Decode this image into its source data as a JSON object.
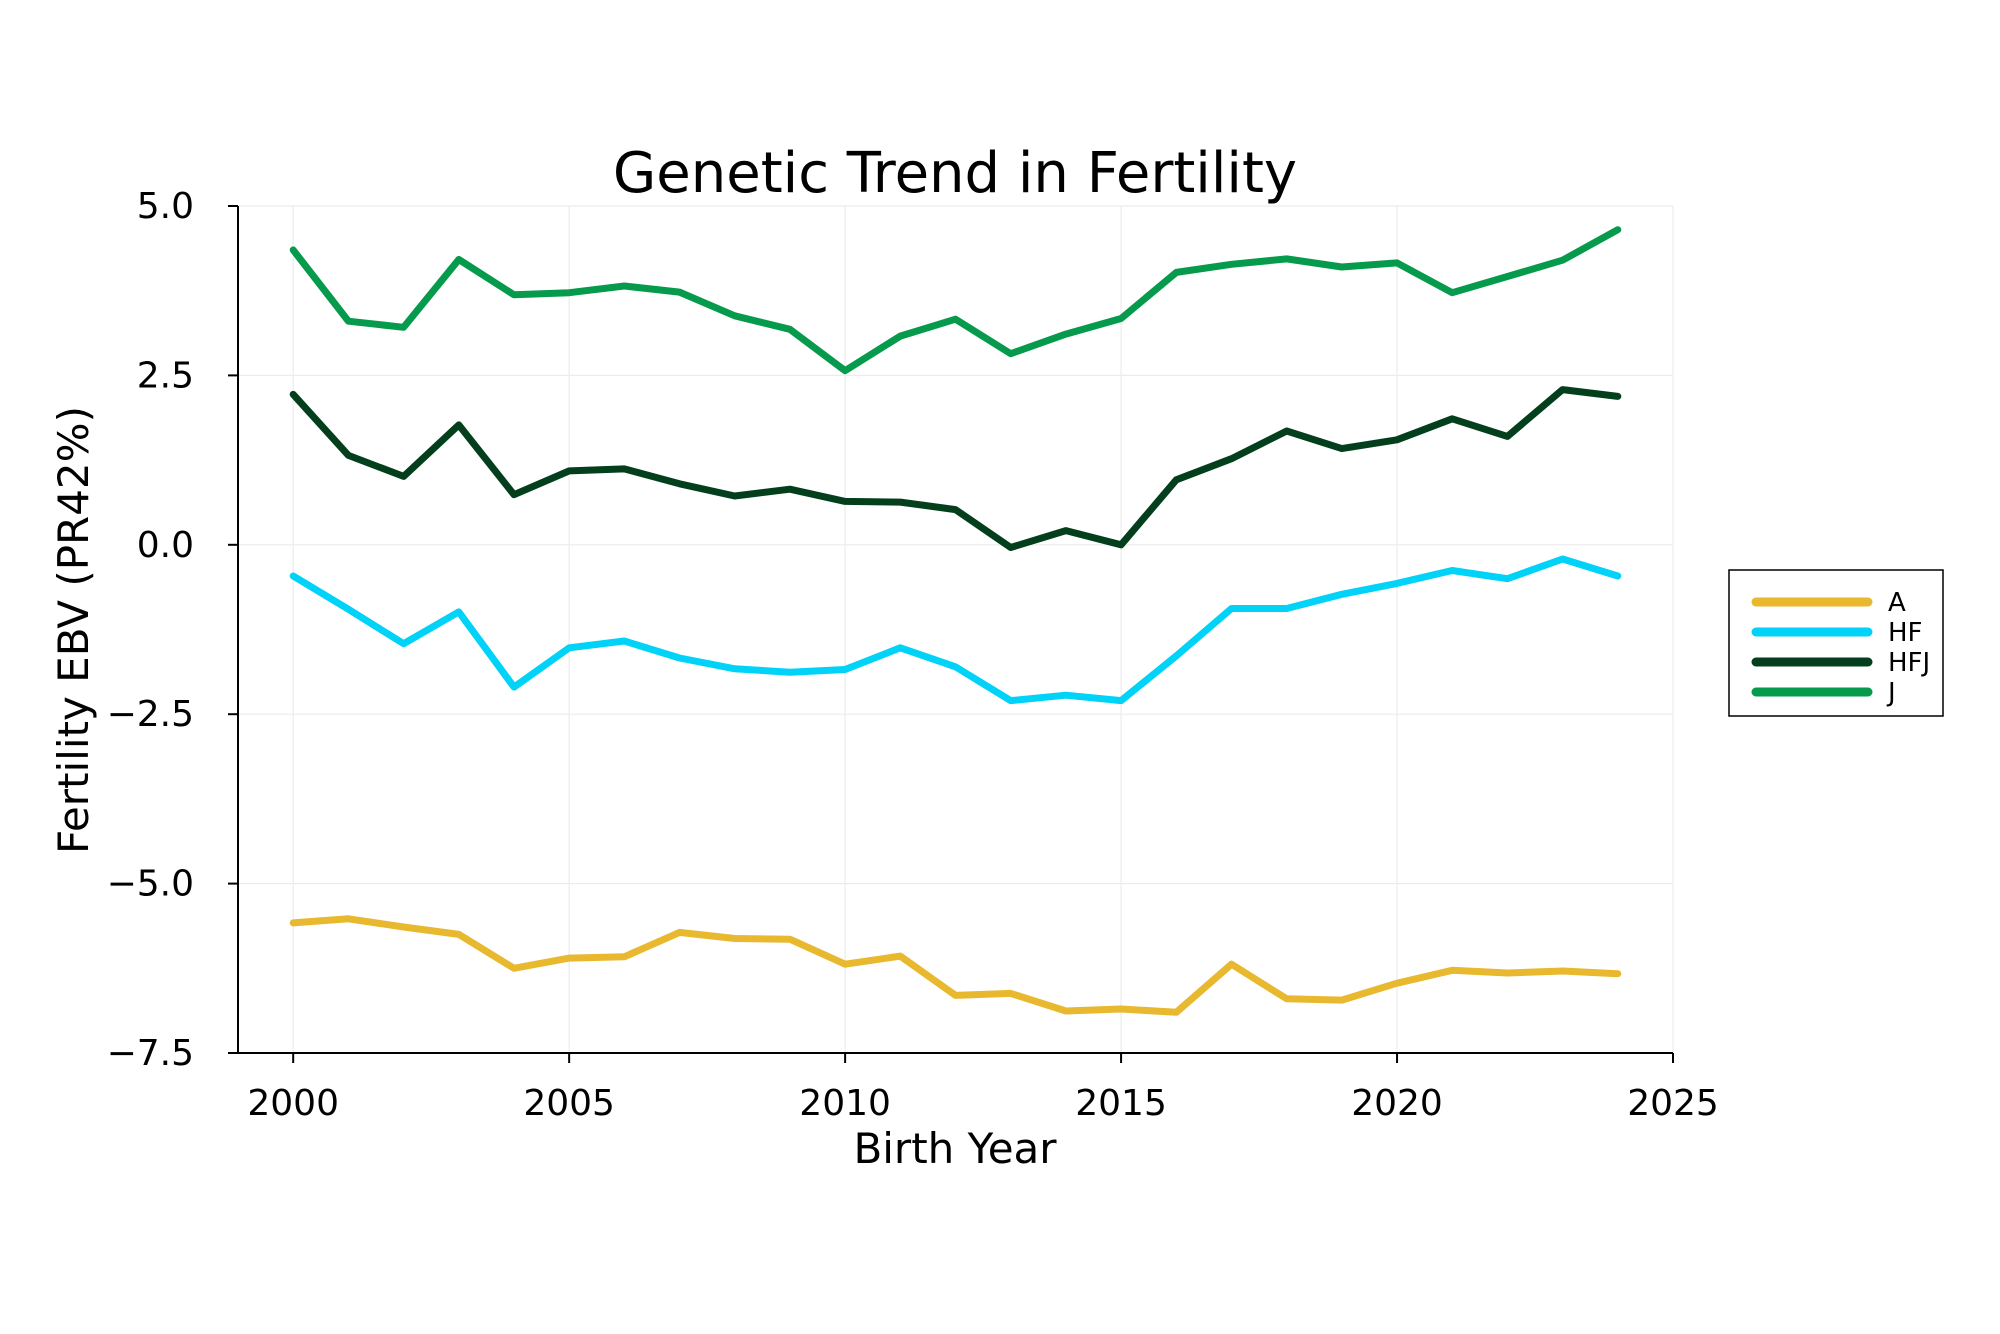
{
  "chart_data": {
    "type": "line",
    "title": "Genetic Trend in Fertility",
    "xlabel": "Birth Year",
    "ylabel": "Fertility EBV (PR42%)",
    "xlim": [
      1999,
      2025
    ],
    "ylim": [
      -7.5,
      5.0
    ],
    "xticks": [
      2000,
      2005,
      2010,
      2015,
      2020,
      2025
    ],
    "yticks": [
      5.0,
      2.5,
      0.0,
      -2.5,
      -5.0,
      -7.5
    ],
    "ytick_labels": [
      "5.0",
      "2.5",
      "0.0",
      "−2.5",
      "−5.0",
      "−7.5"
    ],
    "grid": true,
    "legend_position": "right",
    "x": [
      2000,
      2001,
      2002,
      2003,
      2004,
      2005,
      2006,
      2007,
      2008,
      2009,
      2010,
      2011,
      2012,
      2013,
      2014,
      2015,
      2016,
      2017,
      2018,
      2019,
      2020,
      2021,
      2022,
      2023,
      2024
    ],
    "series": [
      {
        "name": "A",
        "color": "#E8B82E",
        "values": [
          -5.58,
          -5.52,
          -5.64,
          -5.75,
          -6.25,
          -6.1,
          -6.08,
          -5.72,
          -5.81,
          -5.82,
          -6.19,
          -6.07,
          -6.65,
          -6.62,
          -6.88,
          -6.85,
          -6.9,
          -6.19,
          -6.7,
          -6.72,
          -6.47,
          -6.28,
          -6.32,
          -6.29,
          -6.33
        ]
      },
      {
        "name": "HF",
        "color": "#00D2F8",
        "values": [
          -0.46,
          -0.95,
          -1.46,
          -0.99,
          -2.1,
          -1.52,
          -1.42,
          -1.67,
          -1.83,
          -1.88,
          -1.84,
          -1.52,
          -1.8,
          -2.3,
          -2.22,
          -2.3,
          -1.64,
          -0.94,
          -0.94,
          -0.73,
          -0.57,
          -0.38,
          -0.5,
          -0.21,
          -0.46
        ]
      },
      {
        "name": "HFJ",
        "color": "#033F1C",
        "values": [
          2.22,
          1.32,
          1.01,
          1.77,
          0.74,
          1.09,
          1.12,
          0.9,
          0.72,
          0.82,
          0.64,
          0.63,
          0.52,
          -0.04,
          0.21,
          0.0,
          0.96,
          1.27,
          1.68,
          1.42,
          1.55,
          1.86,
          1.6,
          2.29,
          2.19
        ]
      },
      {
        "name": "J",
        "color": "#069A4C",
        "values": [
          4.35,
          3.3,
          3.21,
          4.21,
          3.69,
          3.72,
          3.82,
          3.73,
          3.38,
          3.18,
          2.57,
          3.08,
          3.33,
          2.82,
          3.11,
          3.34,
          4.02,
          4.14,
          4.22,
          4.1,
          4.16,
          3.72,
          3.96,
          4.2,
          4.65
        ]
      }
    ]
  }
}
